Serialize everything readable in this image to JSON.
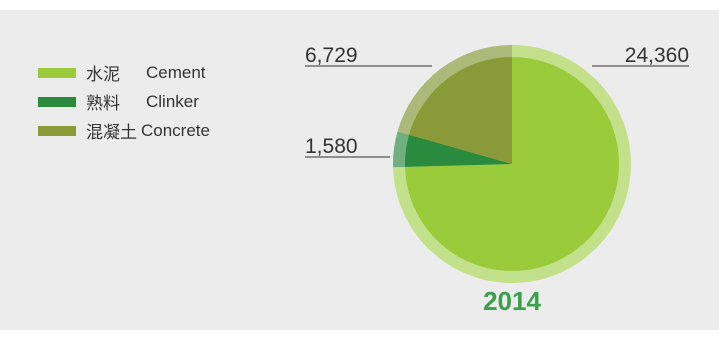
{
  "chart_data": {
    "type": "pie",
    "title": "2014",
    "categories": [
      "水泥 Cement",
      "熟料 Clinker",
      "混凝土 Concrete"
    ],
    "values": [
      24360,
      1580,
      6729
    ],
    "value_labels": [
      "24,360",
      "1,580",
      "6,729"
    ],
    "legend_placement": "left",
    "legend": [
      {
        "zh": "水泥",
        "en": "Cement",
        "color": "#9acb3b"
      },
      {
        "zh": "熟料",
        "en": "Clinker",
        "color": "#2a8a3e"
      },
      {
        "zh": "混凝土",
        "en": "Concrete",
        "color": "#8a9a38"
      }
    ],
    "colors": [
      "#9acb3b",
      "#2a8a3e",
      "#8a9a38"
    ],
    "outer_ring_colors": [
      "#c3e08a",
      "#6fb07e",
      "#adb979"
    ],
    "year_color": "#3aa04a"
  }
}
